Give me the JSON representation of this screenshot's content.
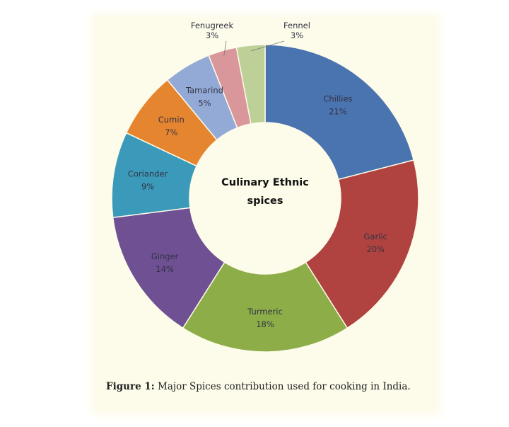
{
  "chart_data": {
    "type": "pie",
    "variant": "donut",
    "center_title_lines": [
      "Culinary Ethnic",
      "spices"
    ],
    "categories": [
      "Chillies",
      "Garlic",
      "Turmeric",
      "Ginger",
      "Coriander",
      "Cumin",
      "Tamarind",
      "Fenugreek",
      "Fennel"
    ],
    "values": [
      21,
      20,
      18,
      14,
      9,
      7,
      5,
      3,
      3
    ],
    "value_labels": [
      "21%",
      "20%",
      "18%",
      "14%",
      "9%",
      "7%",
      "5%",
      "3%",
      "3%"
    ],
    "colors": [
      "#4a74b0",
      "#b0433f",
      "#8cad48",
      "#6e5093",
      "#3b9ab9",
      "#e6852f",
      "#94aad6",
      "#d9979b",
      "#bdd098"
    ],
    "start": "top",
    "direction": "clockwise"
  },
  "caption": {
    "label": "Figure 1:",
    "text": " Major Spices contribution used for cooking in India."
  }
}
